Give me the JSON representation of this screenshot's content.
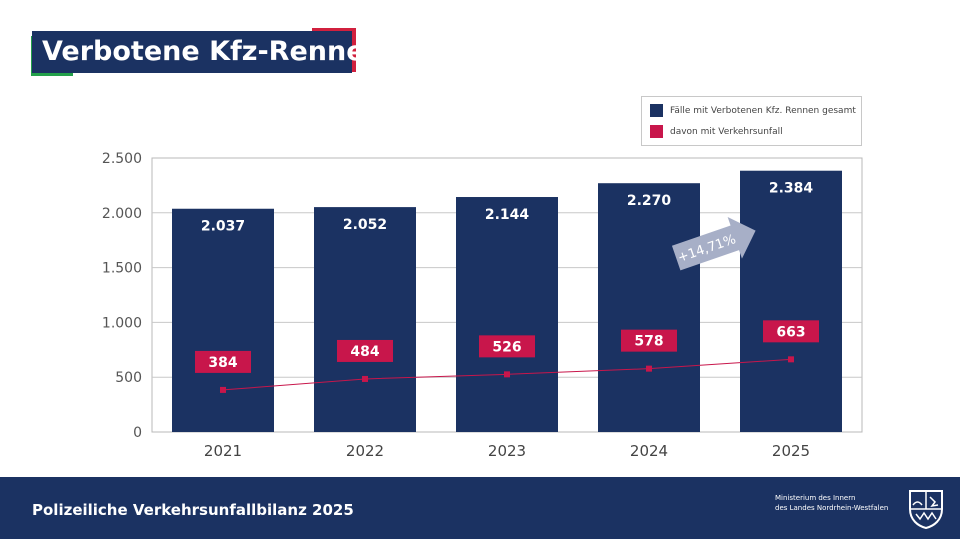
{
  "title": "Verbotene Kfz-Rennen",
  "footer": {
    "report_title": "Polizeiliche Verkehrsunfallbilanz 2025",
    "ministry_line1": "Ministerium des Innern",
    "ministry_line2": "des Landes Nordrhein-Westfalen"
  },
  "colors": {
    "navy": "#1b3262",
    "crimson": "#c8164b",
    "arrow": "#a7afc7"
  },
  "chart_data": {
    "type": "bar",
    "categories": [
      "2021",
      "2022",
      "2023",
      "2024",
      "2025"
    ],
    "series": [
      {
        "name": "Fälle mit Verbotenen Kfz. Rennen gesamt",
        "kind": "bar",
        "values": [
          2037,
          2052,
          2144,
          2270,
          2384
        ],
        "labels": [
          "2.037",
          "2.052",
          "2.144",
          "2.270",
          "2.384"
        ]
      },
      {
        "name": "davon mit Verkehrsunfall",
        "kind": "line",
        "values": [
          384,
          484,
          526,
          578,
          663
        ],
        "labels": [
          "384",
          "484",
          "526",
          "578",
          "663"
        ]
      }
    ],
    "ylim": [
      0,
      2500
    ],
    "yticks": [
      0,
      500,
      1000,
      1500,
      2000,
      2500
    ],
    "ytick_labels": [
      "0",
      "500",
      "1.000",
      "1.500",
      "2.000",
      "2.500"
    ],
    "grid": true,
    "legend": "top-right",
    "annotation": "+14,71%"
  }
}
